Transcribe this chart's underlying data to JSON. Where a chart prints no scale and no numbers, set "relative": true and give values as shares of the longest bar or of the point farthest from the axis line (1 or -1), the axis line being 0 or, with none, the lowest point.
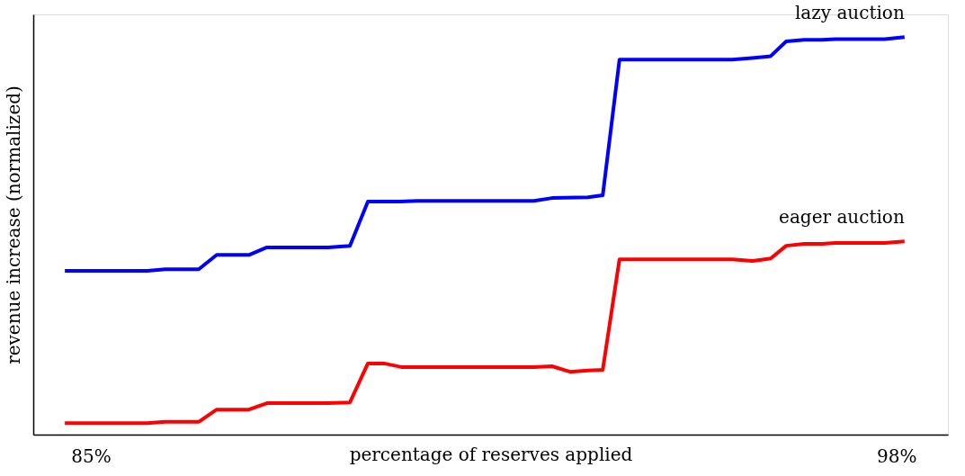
{
  "chart_data": {
    "type": "line",
    "relative": true,
    "xlabel": "percentage of reserves applied",
    "ylabel": "revenue increase (normalized)",
    "xlim": [
      84.07,
      98.83
    ],
    "xticks": [
      {
        "value": 85,
        "label": "85%"
      },
      {
        "value": 98,
        "label": "98%"
      }
    ],
    "grid": false,
    "marker": "none",
    "line_style": "solid",
    "series": [
      {
        "name": "lazy auction",
        "color": "#0000ff",
        "x": [
          84.58,
          85.91,
          86.2,
          86.74,
          87.03,
          87.55,
          87.84,
          88.82,
          89.18,
          89.47,
          89.98,
          90.27,
          92.15,
          92.44,
          93.02,
          93.26,
          93.53,
          93.75,
          95.35,
          95.71,
          95.97,
          96.22,
          96.51,
          96.8,
          97.01,
          97.81,
          98.13
        ],
        "values": [
          0.412,
          0.412,
          0.416,
          0.416,
          0.452,
          0.452,
          0.471,
          0.471,
          0.475,
          0.586,
          0.586,
          0.588,
          0.588,
          0.595,
          0.597,
          0.602,
          0.943,
          0.943,
          0.943,
          0.948,
          0.952,
          0.989,
          0.993,
          0.993,
          0.995,
          0.995,
          1.0
        ]
      },
      {
        "name": "eager auction",
        "color": "#ff0000",
        "x": [
          84.58,
          85.91,
          86.2,
          86.74,
          87.03,
          87.55,
          87.84,
          88.82,
          89.18,
          89.47,
          89.73,
          90.01,
          92.15,
          92.44,
          92.73,
          93.02,
          93.26,
          93.53,
          93.75,
          95.35,
          95.68,
          95.97,
          96.22,
          96.51,
          96.8,
          97.01,
          97.81,
          98.13
        ],
        "values": [
          0.029,
          0.029,
          0.032,
          0.032,
          0.063,
          0.063,
          0.079,
          0.079,
          0.081,
          0.179,
          0.179,
          0.17,
          0.17,
          0.172,
          0.158,
          0.161,
          0.163,
          0.441,
          0.441,
          0.441,
          0.437,
          0.443,
          0.475,
          0.48,
          0.48,
          0.482,
          0.482,
          0.486
        ]
      }
    ]
  }
}
